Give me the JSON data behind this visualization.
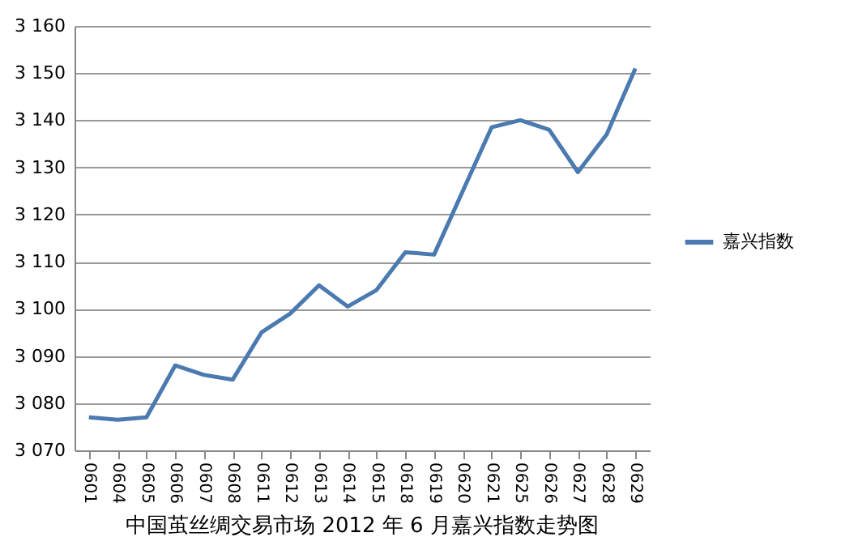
{
  "chart_data": {
    "type": "line",
    "title": "中国茧丝绸交易市场 2012 年 6 月嘉兴指数走势图",
    "categories": [
      "0601",
      "0604",
      "0605",
      "0606",
      "0607",
      "0608",
      "0611",
      "0612",
      "0613",
      "0614",
      "0615",
      "0618",
      "0619",
      "0620",
      "0621",
      "0625",
      "0626",
      "0627",
      "0628",
      "0629"
    ],
    "series": [
      {
        "name": "嘉兴指数",
        "color": "#4a7ab0",
        "values": [
          3077,
          3076.5,
          3077,
          3088,
          3086,
          3085,
          3095,
          3099,
          3105,
          3100.5,
          3104,
          3112,
          3111.5,
          3125,
          3138.5,
          3140,
          3138,
          3129,
          3137,
          3151
        ]
      }
    ],
    "ylim": [
      3070,
      3160
    ],
    "yticks": [
      {
        "value": 3070,
        "label": "3 070"
      },
      {
        "value": 3080,
        "label": "3 080"
      },
      {
        "value": 3090,
        "label": "3 090"
      },
      {
        "value": 3100,
        "label": "3 100"
      },
      {
        "value": 3110,
        "label": "3 110"
      },
      {
        "value": 3120,
        "label": "3 120"
      },
      {
        "value": 3130,
        "label": "3 130"
      },
      {
        "value": 3140,
        "label": "3 140"
      },
      {
        "value": 3150,
        "label": "3 150"
      },
      {
        "value": 3160,
        "label": "3 160"
      }
    ],
    "grid": "y",
    "legend": "right",
    "marker": "none",
    "line_style": "solid"
  }
}
